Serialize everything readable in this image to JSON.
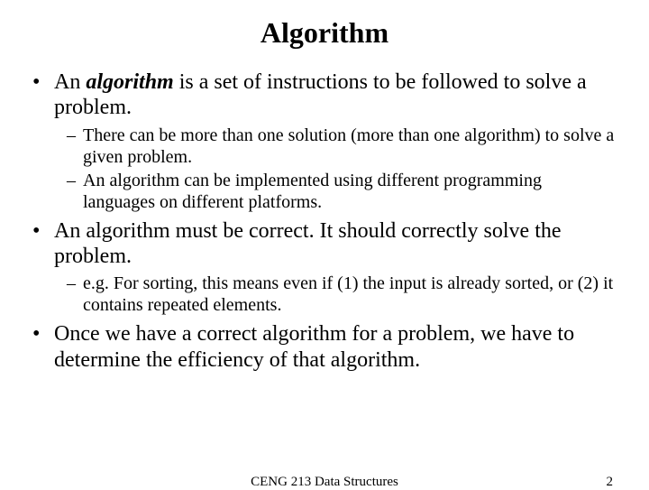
{
  "title": "Algorithm",
  "bullets": [
    {
      "pre": "An ",
      "em": "algorithm",
      "post": " is a set of instructions to be followed to solve a problem.",
      "subs": [
        "There can be more than one solution (more than one algorithm) to solve a given problem.",
        "An algorithm can be implemented using different programming languages on different platforms."
      ]
    },
    {
      "text": "An algorithm must be correct. It should correctly solve the problem.",
      "subs": [
        "e.g. For sorting, this means even if (1) the input is already sorted, or (2) it contains repeated elements."
      ]
    },
    {
      "text": "Once we have a correct algorithm for a problem, we have to determine the efficiency of that algorithm.",
      "subs": []
    }
  ],
  "footer": {
    "course": "CENG 213 Data Structures",
    "page": "2"
  },
  "marks": {
    "bullet": "•",
    "dash": "–"
  }
}
